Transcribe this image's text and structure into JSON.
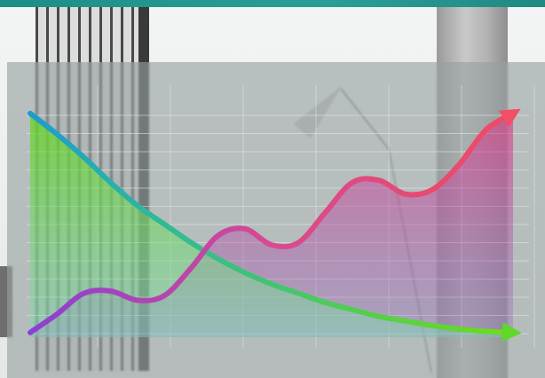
{
  "chart_data": {
    "type": "area",
    "title": "",
    "xlabel": "",
    "ylabel": "",
    "x": [
      0,
      1,
      2,
      3,
      4,
      5,
      6,
      7,
      8,
      9,
      10,
      11,
      12,
      13,
      14,
      15,
      16,
      17,
      18
    ],
    "xlim": [
      0,
      18
    ],
    "ylim": [
      0,
      10
    ],
    "grid": true,
    "series": [
      {
        "values": [
          9.7,
          8.8,
          7.8,
          6.7,
          5.7,
          4.9,
          4.1,
          3.4,
          2.8,
          2.3,
          1.9,
          1.5,
          1.2,
          0.9,
          0.7,
          0.5,
          0.35,
          0.25,
          0.2
        ],
        "color": "#6fdc1a",
        "fill": "#8fe81f"
      },
      {
        "values": [
          0.2,
          1.0,
          1.9,
          2.0,
          1.6,
          1.8,
          3.0,
          4.4,
          4.7,
          4.0,
          4.1,
          5.4,
          6.7,
          6.8,
          6.2,
          6.4,
          7.5,
          9.0,
          9.7
        ],
        "color": "#e63b7a",
        "fill": "#c43d98"
      }
    ],
    "colors": {
      "grid": "#e6ecec",
      "curve_up_start": "#8b3fd6",
      "curve_down_start": "#1d9bd0"
    }
  }
}
